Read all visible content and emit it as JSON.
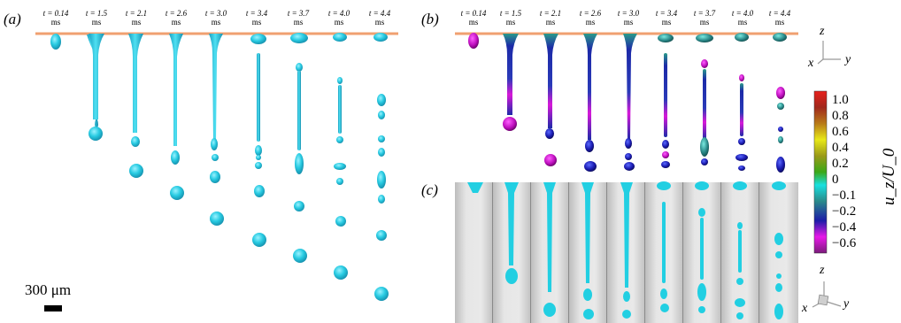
{
  "panels": {
    "a": "(a)",
    "b": "(b)",
    "c": "(c)"
  },
  "time_labels": [
    {
      "t": "t = 0.14",
      "unit": "ms"
    },
    {
      "t": "t = 1.5",
      "unit": "ms"
    },
    {
      "t": "t = 2.1",
      "unit": "ms"
    },
    {
      "t": "t = 2.6",
      "unit": "ms"
    },
    {
      "t": "t = 3.0",
      "unit": "ms"
    },
    {
      "t": "t = 3.4",
      "unit": "ms"
    },
    {
      "t": "t = 3.7",
      "unit": "ms"
    },
    {
      "t": "t = 4.0",
      "unit": "ms"
    },
    {
      "t": "t = 4.4",
      "unit": "ms"
    }
  ],
  "scale_bar": {
    "label": "300 μm"
  },
  "colorbar": {
    "title": "u_z/U_0",
    "ticks": [
      "1.0",
      "0.8",
      "0.6",
      "0.4",
      "0.2",
      "0",
      "−0.1",
      "−0.2",
      "−0.4",
      "−0.6"
    ],
    "colors": [
      "#e8201c",
      "#a0281c",
      "#b87a18",
      "#e8e818",
      "#9a9a18",
      "#3aa818",
      "#18e0e0",
      "#2a8a8a",
      "#1c1ca8",
      "#e818e8",
      "#7a1a7a"
    ]
  },
  "axes": {
    "z": "z",
    "x": "x",
    "y": "y"
  },
  "colors": {
    "jet": "#23c8e0",
    "nozzle": "#e8a070"
  }
}
